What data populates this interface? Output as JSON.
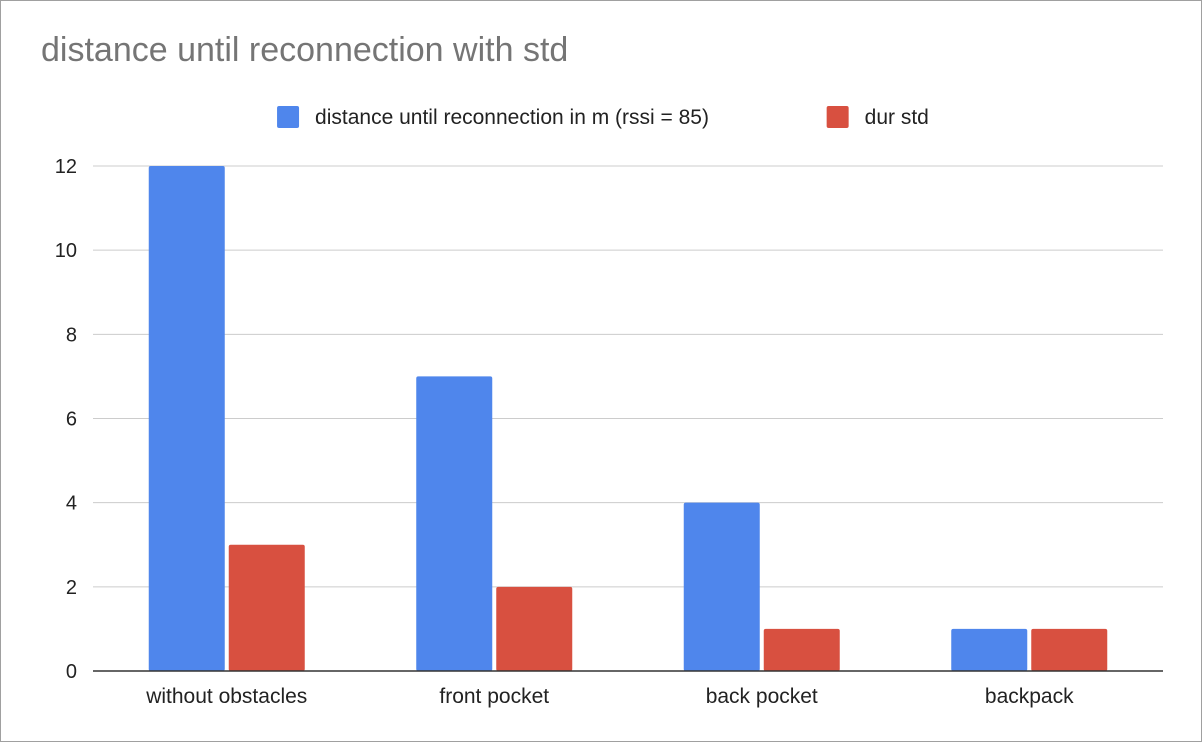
{
  "chart_data": {
    "type": "bar",
    "title": "distance until reconnection with std",
    "xlabel": "",
    "ylabel": "",
    "categories": [
      "without obstacles",
      "front pocket",
      "back pocket",
      "backpack"
    ],
    "series": [
      {
        "name": "distance until reconnection in m (rssi = 85)",
        "color": "#4f86ec",
        "values": [
          12,
          7,
          4,
          1
        ]
      },
      {
        "name": "dur std",
        "color": "#d85040",
        "values": [
          3,
          2,
          1,
          1
        ]
      }
    ],
    "ylim": [
      0,
      12
    ],
    "yticks": [
      0,
      2,
      4,
      6,
      8,
      10,
      12
    ],
    "grid": true,
    "legend_position": "top-center"
  }
}
